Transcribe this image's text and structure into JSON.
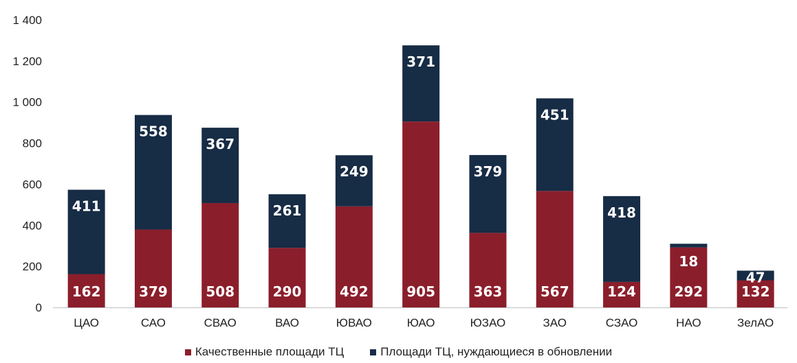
{
  "chart_data": {
    "type": "bar",
    "stacked": true,
    "categories": [
      "ЦАО",
      "САО",
      "СВАО",
      "ВАО",
      "ЮВАО",
      "ЮАО",
      "ЮЗАО",
      "ЗАО",
      "СЗАО",
      "НАО",
      "ЗелАО"
    ],
    "series": [
      {
        "name": "Качественные площади ТЦ",
        "color": "#8b1e2b",
        "values": [
          162,
          379,
          508,
          290,
          492,
          905,
          363,
          567,
          124,
          292,
          132
        ]
      },
      {
        "name": "Площади ТЦ, нуждающиеся в обновлении",
        "color": "#172c45",
        "values": [
          411,
          558,
          367,
          261,
          249,
          371,
          379,
          451,
          418,
          18,
          47
        ]
      }
    ],
    "yticks": [
      "0",
      "200",
      "400",
      "600",
      "800",
      "1 000",
      "1 200",
      "1 400"
    ],
    "ylim": [
      0,
      1400
    ],
    "grid": false,
    "legend_position": "bottom",
    "title": "",
    "xlabel": "",
    "ylabel": ""
  }
}
